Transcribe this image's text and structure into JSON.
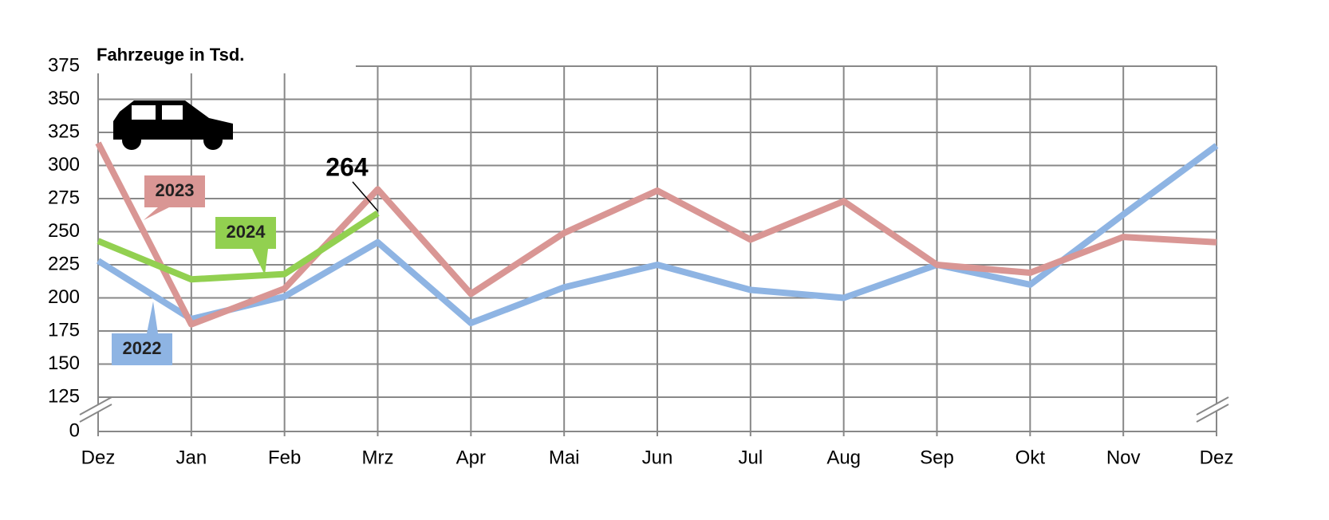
{
  "chart_data": {
    "type": "line",
    "title": "Fahrzeuge in Tsd.",
    "categories": [
      "Dez",
      "Jan",
      "Feb",
      "Mrz",
      "Apr",
      "Mai",
      "Jun",
      "Jul",
      "Aug",
      "Sep",
      "Okt",
      "Nov",
      "Dez"
    ],
    "series": [
      {
        "name": "2022",
        "color": "#8eb4e3",
        "values": [
          228,
          184,
          201,
          242,
          181,
          208,
          225,
          206,
          200,
          225,
          210,
          263,
          315
        ]
      },
      {
        "name": "2023",
        "color": "#d99694",
        "values": [
          317,
          180,
          207,
          282,
          203,
          249,
          281,
          244,
          273,
          225,
          219,
          246,
          242
        ]
      },
      {
        "name": "2024",
        "color": "#92d050",
        "values": [
          243,
          214,
          218,
          264,
          null,
          null,
          null,
          null,
          null,
          null,
          null,
          null,
          null
        ]
      }
    ],
    "ylim": [
      0,
      375
    ],
    "axis_break": 125,
    "yticks": [
      0,
      125,
      150,
      175,
      200,
      225,
      250,
      275,
      300,
      325,
      350,
      375
    ],
    "grid": true
  }
}
